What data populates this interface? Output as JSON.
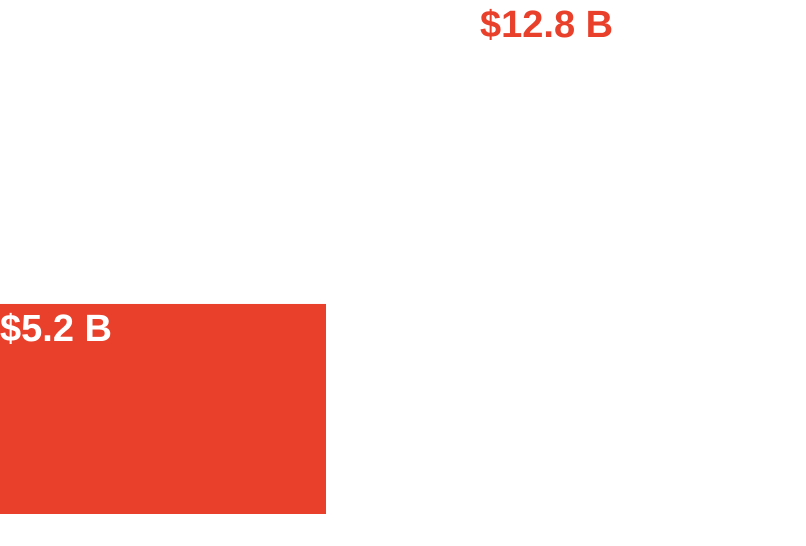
{
  "chart_data": {
    "type": "bar",
    "values": [
      5.2,
      12.8
    ],
    "value_labels": [
      "$5.2 B",
      "$12.8 B"
    ],
    "colors": [
      "#e8402b",
      "#ffffff"
    ],
    "label_colors": [
      "#ffffff",
      "#e8402b"
    ]
  }
}
